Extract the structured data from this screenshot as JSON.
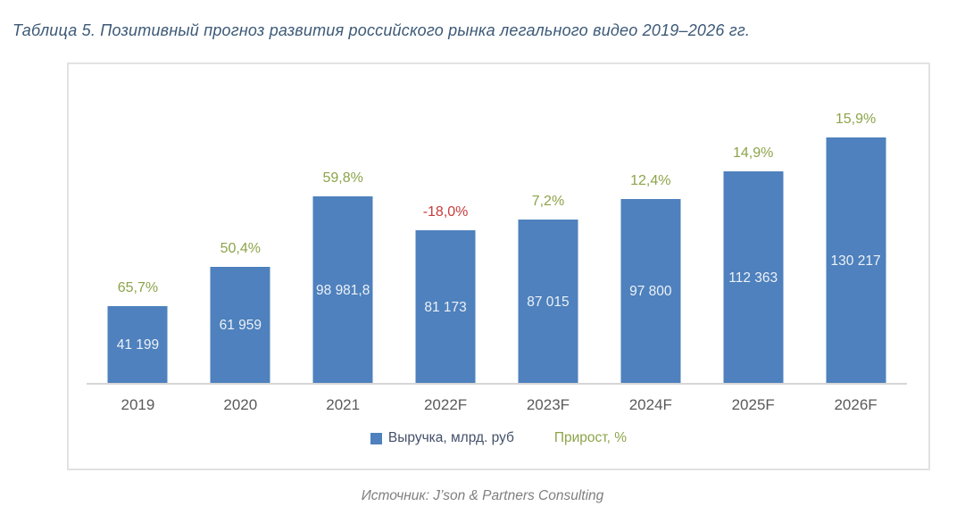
{
  "title": "Таблица 5. Позитивный прогноз развития российского рынка легального видео 2019–2026 гг.",
  "source": "Источник: J’son & Partners Consulting",
  "legend": {
    "revenue_label": "Выручка, млрд. руб",
    "growth_label": "Прирост, %"
  },
  "colors": {
    "bar": "#4E81BD",
    "growth_positive": "#8CA44A",
    "growth_negative": "#C93B3B",
    "title_text": "#3C5977",
    "axis_label": "#5A5A5A",
    "bar_value_text": "#EDF1F7",
    "axis_line": "#D6D6D6",
    "frame_border": "#E2E2E2",
    "source_text": "#7F7F7F"
  },
  "chart_data": {
    "type": "bar",
    "title": "Таблица 5. Позитивный прогноз развития российского рынка легального видео 2019–2026 гг.",
    "categories": [
      "2019",
      "2020",
      "2021",
      "2022F",
      "2023F",
      "2024F",
      "2025F",
      "2026F"
    ],
    "series": [
      {
        "name": "Выручка, млрд. руб",
        "values": [
          41199,
          61959,
          98981.8,
          81173,
          87015,
          97800,
          112363,
          130217
        ],
        "value_labels": [
          "41 199",
          "61 959",
          "98 981,8",
          "81 173",
          "87 015",
          "97 800",
          "112 363",
          "130 217"
        ]
      },
      {
        "name": "Прирост, %",
        "values": [
          65.7,
          50.4,
          59.8,
          -18.0,
          7.2,
          12.4,
          14.9,
          15.9
        ],
        "value_labels": [
          "65,7%",
          "50,4%",
          "59,8%",
          "-18,0%",
          "7,2%",
          "12,4%",
          "14,9%",
          "15,9%"
        ]
      }
    ],
    "xlabel": "",
    "ylabel": "",
    "ylim": [
      0,
      169000
    ],
    "grid": false,
    "legend_position": "bottom",
    "bar_labels_position": "center-inside",
    "growth_labels_position": "above-bar"
  }
}
